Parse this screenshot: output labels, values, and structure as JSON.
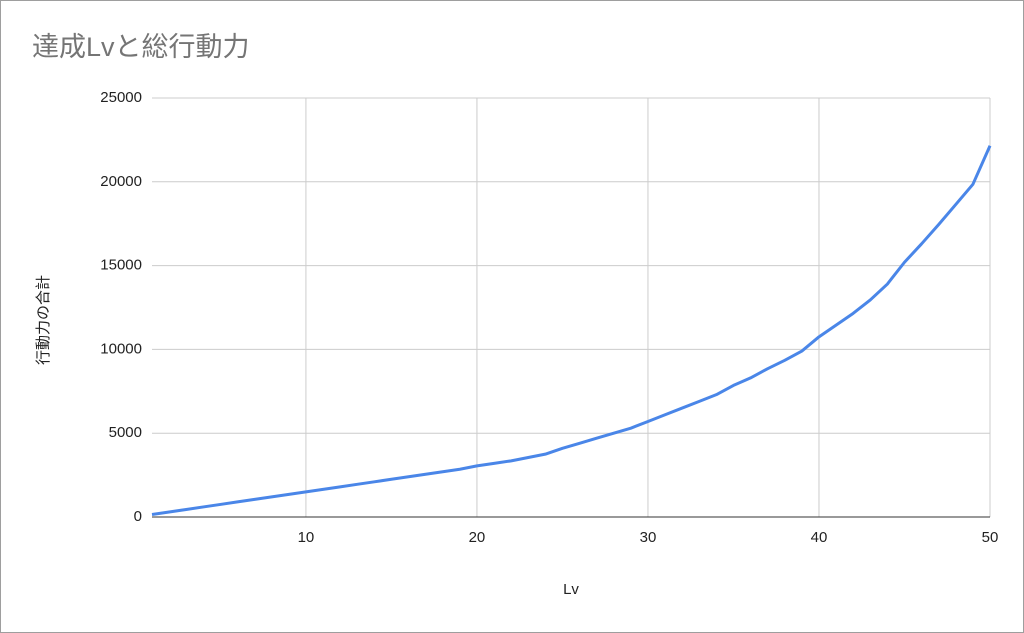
{
  "chart_data": {
    "type": "line",
    "title": "達成Lvと総行動力",
    "x_label": "Lv",
    "y_label": "行動力の合計",
    "x": [
      1,
      2,
      3,
      4,
      5,
      6,
      7,
      8,
      9,
      10,
      11,
      12,
      13,
      14,
      15,
      16,
      17,
      18,
      19,
      20,
      21,
      22,
      23,
      24,
      25,
      26,
      27,
      28,
      29,
      30,
      31,
      32,
      33,
      34,
      35,
      36,
      37,
      38,
      39,
      40,
      41,
      42,
      43,
      44,
      45,
      46,
      47,
      48,
      49,
      50
    ],
    "values": [
      150,
      300,
      450,
      600,
      750,
      900,
      1050,
      1200,
      1350,
      1500,
      1650,
      1800,
      1950,
      2100,
      2250,
      2400,
      2550,
      2700,
      2850,
      3050,
      3200,
      3350,
      3550,
      3750,
      4100,
      4400,
      4700,
      5000,
      5300,
      5700,
      6100,
      6500,
      6900,
      7300,
      7850,
      8300,
      8850,
      9350,
      9900,
      10750,
      11450,
      12150,
      12950,
      13900,
      15200,
      16300,
      17450,
      18650,
      19850,
      22150
    ],
    "color": "#4a86e8",
    "xlim": [
      1,
      50
    ],
    "xticks": [
      10,
      20,
      30,
      40,
      50
    ],
    "ylim": [
      0,
      25000
    ],
    "yticks": [
      0,
      5000,
      10000,
      15000,
      20000,
      25000
    ],
    "grid": true
  }
}
